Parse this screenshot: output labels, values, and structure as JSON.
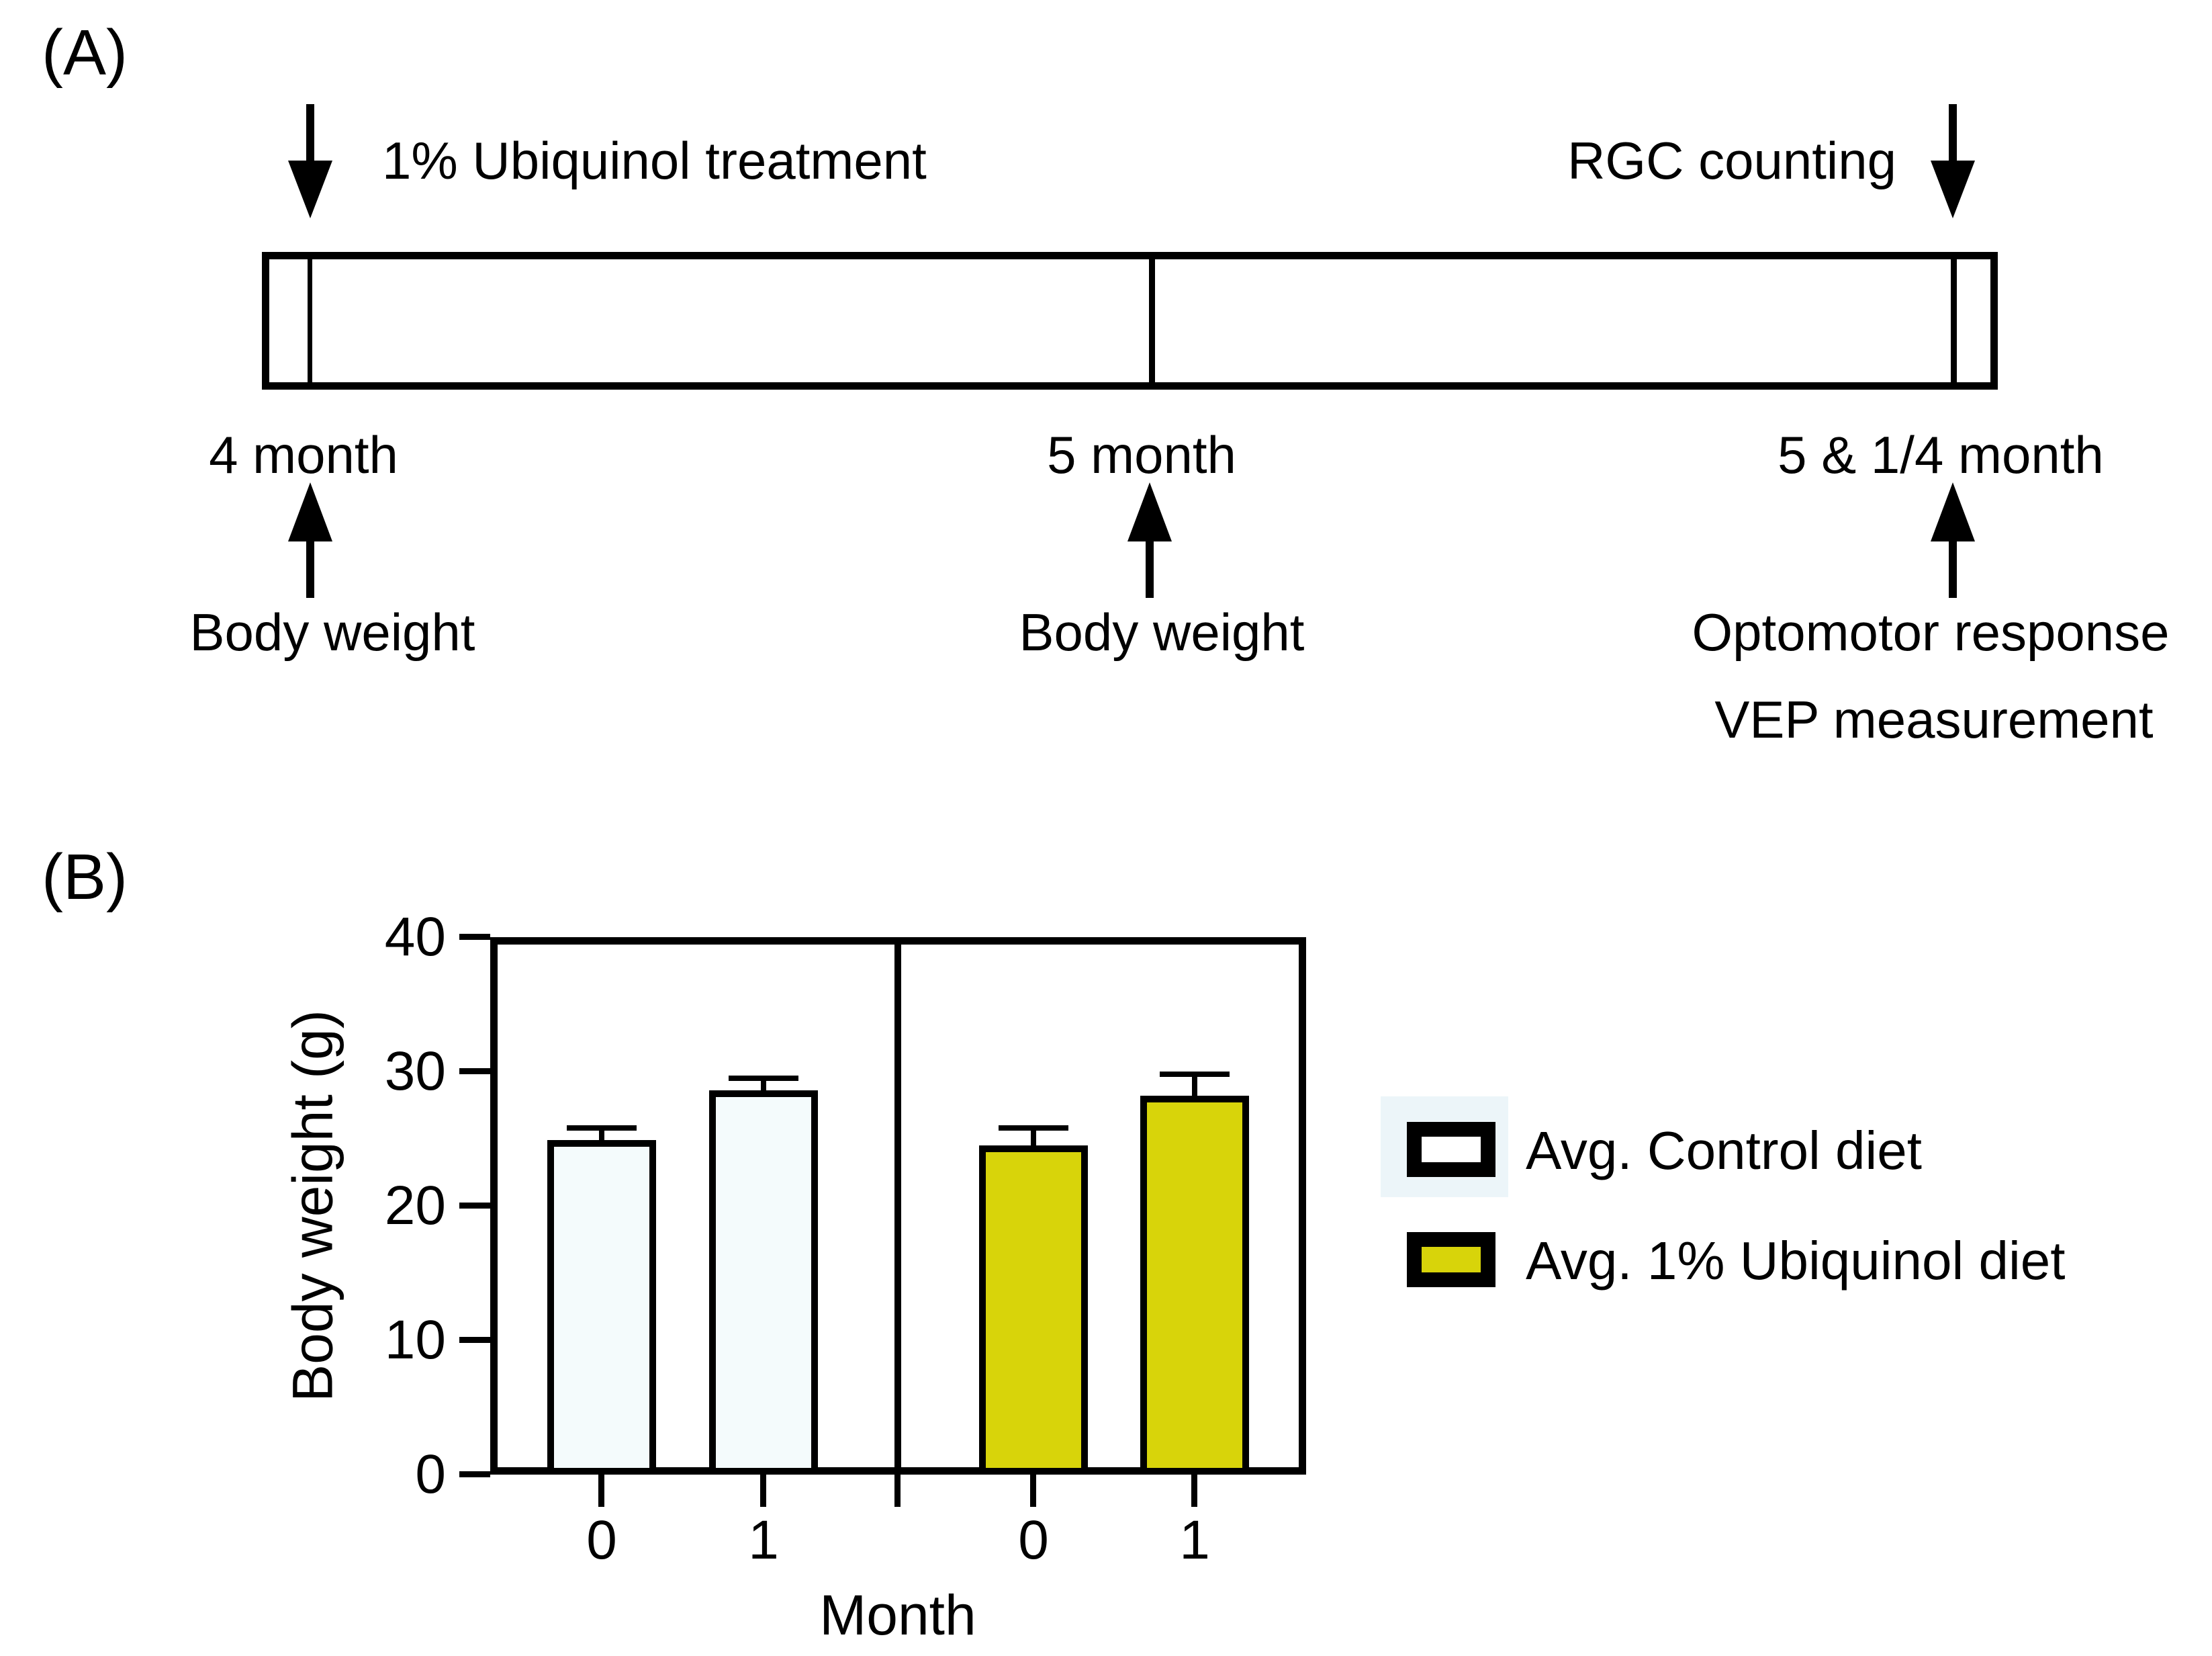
{
  "panel_a": {
    "label": "(A)",
    "treatment_label": "1% Ubiquinol treatment",
    "rgc_label": "RGC counting",
    "months": [
      "4 month",
      "5 month",
      "5 & 1/4 month"
    ],
    "events": [
      "Body weight",
      "Body weight",
      "Optomotor response",
      "VEP measurement"
    ]
  },
  "panel_b": {
    "label": "(B)"
  },
  "chart_data": {
    "type": "bar",
    "title": "",
    "xlabel": "Month",
    "ylabel": "Body weight (g)",
    "ylim": [
      0,
      40
    ],
    "yticks": [
      0,
      10,
      20,
      30,
      40
    ],
    "categories": [
      "0",
      "1",
      "0",
      "1"
    ],
    "series": [
      {
        "name": "Avg. Control diet",
        "categories": [
          "0",
          "1"
        ],
        "values": [
          24.9,
          28.6
        ],
        "errors_plus": [
          1.1,
          1.1
        ],
        "fill_color": "#f4fbfc"
      },
      {
        "name": "Avg. 1% Ubiquinol diet",
        "categories": [
          "0",
          "1"
        ],
        "values": [
          24.5,
          28.2
        ],
        "errors_plus": [
          1.5,
          1.8
        ],
        "fill_color": "#d8d40a"
      }
    ],
    "error_bars": "upper only",
    "legend_position": "right",
    "grid": false,
    "panel_divider": true,
    "bar_border_color": "#000000"
  }
}
